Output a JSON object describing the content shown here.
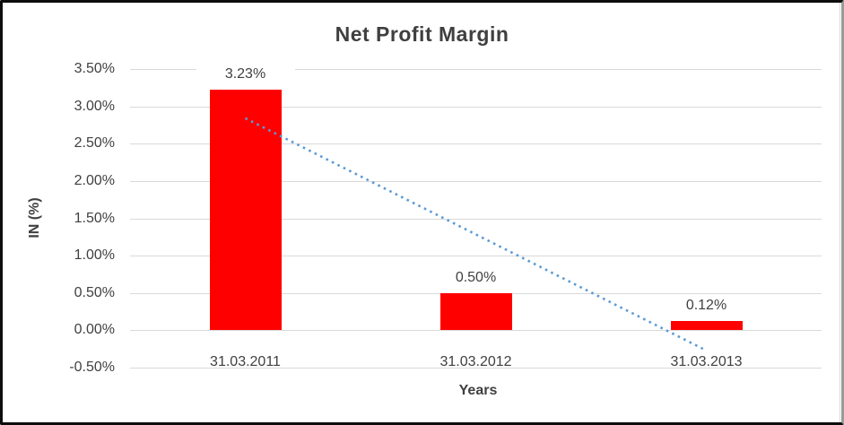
{
  "window": {
    "background": "#ffffff",
    "frame_border_color": "#0d0d0d",
    "inner_edge_color": "#d9d9d9"
  },
  "chart_data": {
    "type": "bar",
    "title": "Net Profit Margin",
    "xlabel": "Years",
    "ylabel": "IN (%)",
    "categories": [
      "31.03.2011",
      "31.03.2012",
      "31.03.2013"
    ],
    "series": [
      {
        "name": "Net Profit Margin",
        "color": "#ff0000",
        "values": [
          3.23,
          0.5,
          0.12
        ],
        "data_labels": [
          "3.23%",
          "0.50%",
          "0.12%"
        ]
      }
    ],
    "ylim": [
      -0.5,
      3.5
    ],
    "ytick_step": 0.5,
    "yticks": [
      {
        "value": 3.5,
        "label": "3.50%"
      },
      {
        "value": 3.0,
        "label": "3.00%"
      },
      {
        "value": 2.5,
        "label": "2.50%"
      },
      {
        "value": 2.0,
        "label": "2.00%"
      },
      {
        "value": 1.5,
        "label": "1.50%"
      },
      {
        "value": 1.0,
        "label": "1.00%"
      },
      {
        "value": 0.5,
        "label": "0.50%"
      },
      {
        "value": 0.0,
        "label": "0.00%"
      },
      {
        "value": -0.5,
        "label": "-0.50%"
      }
    ],
    "grid": true,
    "gridline_color": "#d9d9d9",
    "legend": "none",
    "title_color": "#3f3f3f",
    "text_color": "#404040",
    "trendline": {
      "type": "linear",
      "style": "dotted",
      "color": "#5b9bd5",
      "start_value": 2.84,
      "end_value": -0.27
    }
  }
}
